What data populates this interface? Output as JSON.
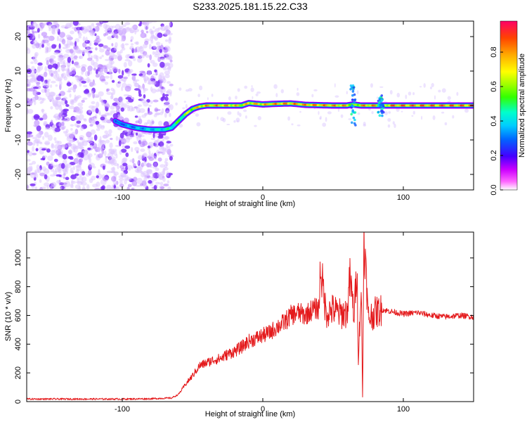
{
  "title": "S233.2025.181.15.22.C33",
  "colors": {
    "signal": "#e41a1c",
    "noise_dots": "#8a2be2",
    "frame": "#000000"
  },
  "chart_data": [
    {
      "type": "heatmap",
      "xlabel": "Height of straight line (km)",
      "ylabel": "Frequency (Hz)",
      "xlim": [
        -168,
        150
      ],
      "ylim": [
        -24.5,
        24.5
      ],
      "x_ticks": [
        -100,
        0,
        100
      ],
      "y_ticks": [
        -20,
        -10,
        0,
        10,
        20
      ],
      "colorbar": {
        "label": "Normalized spectral amplitude",
        "range": [
          0,
          0.98
        ],
        "ticks": [
          0.0,
          0.2,
          0.4,
          0.6,
          0.8
        ],
        "colormap": [
          "#ffffff",
          "#ff00ff",
          "#0000ff",
          "#00ffff",
          "#00ff00",
          "#ffff00",
          "#ff0000"
        ]
      },
      "ridge": {
        "x": [
          -105,
          -100,
          -90,
          -80,
          -70,
          -65,
          -60,
          -55,
          -50,
          -45,
          -40,
          -30,
          -20,
          -15,
          -10,
          -5,
          0,
          10,
          20,
          30,
          50,
          60,
          64,
          70,
          80,
          84,
          90,
          100,
          120,
          150
        ],
        "y": [
          -4.5,
          -5.5,
          -6.5,
          -7,
          -7,
          -6.5,
          -4.5,
          -2.5,
          -1,
          -0.3,
          0,
          0,
          0,
          0,
          0.7,
          0.5,
          0.3,
          0.5,
          0.6,
          0.2,
          0,
          0,
          0.3,
          0,
          0,
          0,
          0,
          0,
          0,
          0
        ],
        "amplitude": [
          0.3,
          0.35,
          0.4,
          0.45,
          0.5,
          0.55,
          0.6,
          0.7,
          0.8,
          0.85,
          0.88,
          0.9,
          0.85,
          0.8,
          0.85,
          0.85,
          0.85,
          0.9,
          0.9,
          0.9,
          0.9,
          0.88,
          0.6,
          0.9,
          0.9,
          0.6,
          0.95,
          0.95,
          0.95,
          0.95
        ]
      },
      "noise_region_x": [
        -168,
        -65
      ]
    },
    {
      "type": "line",
      "xlabel": "Height of straight line (km)",
      "ylabel": "SNR (10 * v/v)",
      "xlim": [
        -168,
        150
      ],
      "ylim": [
        0,
        1180
      ],
      "x_ticks": [
        -100,
        0,
        100
      ],
      "y_ticks": [
        0,
        200,
        400,
        600,
        800,
        1000
      ],
      "series": [
        {
          "color": "#e41a1c",
          "x": [
            -168,
            -150,
            -120,
            -100,
            -80,
            -65,
            -60,
            -55,
            -50,
            -45,
            -40,
            -35,
            -30,
            -25,
            -20,
            -15,
            -10,
            -5,
            0,
            5,
            10,
            15,
            20,
            25,
            30,
            35,
            40,
            41,
            45,
            50,
            55,
            60,
            62,
            65,
            67,
            68,
            70,
            71,
            72,
            75,
            80,
            85,
            90,
            100,
            110,
            120,
            130,
            140,
            150
          ],
          "values": [
            18,
            18,
            18,
            18,
            20,
            25,
            50,
            120,
            180,
            250,
            270,
            290,
            300,
            330,
            350,
            380,
            420,
            440,
            460,
            480,
            520,
            550,
            600,
            620,
            600,
            640,
            650,
            940,
            620,
            640,
            610,
            620,
            860,
            600,
            950,
            300,
            800,
            30,
            1180,
            580,
            620,
            640,
            630,
            610,
            620,
            600,
            590,
            600,
            590
          ]
        }
      ]
    }
  ]
}
